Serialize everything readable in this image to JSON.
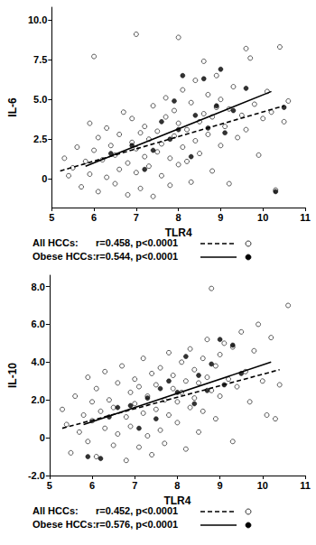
{
  "chart_data": [
    {
      "type": "scatter",
      "x_label": "TLR4",
      "y_label": "IL-6",
      "xlim": [
        5,
        11
      ],
      "xticks": [
        5,
        6,
        7,
        8,
        9,
        10,
        11
      ],
      "ylim": [
        -1.8,
        10.8
      ],
      "yticks": [
        0,
        {
          "value": 2.5,
          "label": "2.5"
        },
        {
          "value": 5,
          "label": "5.0"
        },
        {
          "value": 7.5,
          "label": "7.5"
        },
        {
          "value": 10,
          "label": "10.0"
        }
      ],
      "grid": false,
      "series": [
        {
          "name": "All HCCs:",
          "annotation": "r=0.458, p<0.0001",
          "marker": "open",
          "line_style": "dashed",
          "color": "#000000",
          "fit": [
            [
              5.2,
              0.5
            ],
            [
              10.5,
              4.6
            ]
          ],
          "values": [
            [
              5.3,
              1.3
            ],
            [
              5.4,
              0.2
            ],
            [
              5.5,
              0.7
            ],
            [
              5.6,
              2.0
            ],
            [
              5.7,
              -0.5
            ],
            [
              5.8,
              1.1
            ],
            [
              5.9,
              3.5
            ],
            [
              5.9,
              0.3
            ],
            [
              6.0,
              1.8
            ],
            [
              6.0,
              7.7
            ],
            [
              6.1,
              -0.8
            ],
            [
              6.1,
              2.6
            ],
            [
              6.2,
              1.2
            ],
            [
              6.3,
              0.1
            ],
            [
              6.3,
              3.2
            ],
            [
              6.4,
              2.1
            ],
            [
              6.5,
              -0.3
            ],
            [
              6.5,
              1.5
            ],
            [
              6.6,
              2.8
            ],
            [
              6.6,
              0.6
            ],
            [
              6.7,
              4.2
            ],
            [
              6.8,
              1.0
            ],
            [
              6.8,
              -1.0
            ],
            [
              6.9,
              2.3
            ],
            [
              6.9,
              3.8
            ],
            [
              7.0,
              0.4
            ],
            [
              7.0,
              1.9
            ],
            [
              7.0,
              9.1
            ],
            [
              7.1,
              2.9
            ],
            [
              7.1,
              -0.6
            ],
            [
              7.2,
              1.4
            ],
            [
              7.2,
              3.3
            ],
            [
              7.3,
              0.8
            ],
            [
              7.3,
              2.5
            ],
            [
              7.4,
              4.6
            ],
            [
              7.4,
              -1.1
            ],
            [
              7.5,
              1.7
            ],
            [
              7.5,
              3.0
            ],
            [
              7.6,
              0.2
            ],
            [
              7.6,
              2.2
            ],
            [
              7.7,
              3.9
            ],
            [
              7.7,
              5.1
            ],
            [
              7.8,
              1.3
            ],
            [
              7.8,
              -0.4
            ],
            [
              7.9,
              2.7
            ],
            [
              7.9,
              4.3
            ],
            [
              8.0,
              0.9
            ],
            [
              8.0,
              3.5
            ],
            [
              8.0,
              8.9
            ],
            [
              8.1,
              2.0
            ],
            [
              8.1,
              5.6
            ],
            [
              8.2,
              1.1
            ],
            [
              8.2,
              3.1
            ],
            [
              8.3,
              4.8
            ],
            [
              8.3,
              -0.2
            ],
            [
              8.4,
              2.4
            ],
            [
              8.4,
              6.2
            ],
            [
              8.5,
              3.6
            ],
            [
              8.5,
              1.6
            ],
            [
              8.6,
              4.1
            ],
            [
              8.6,
              7.4
            ],
            [
              8.7,
              2.8
            ],
            [
              8.7,
              5.3
            ],
            [
              8.8,
              0.5
            ],
            [
              8.8,
              3.9
            ],
            [
              8.9,
              4.5
            ],
            [
              8.9,
              6.5
            ],
            [
              9.0,
              2.1
            ],
            [
              9.0,
              5.0
            ],
            [
              9.1,
              3.3
            ],
            [
              9.2,
              4.4
            ],
            [
              9.2,
              -0.3
            ],
            [
              9.3,
              5.8
            ],
            [
              9.4,
              2.6
            ],
            [
              9.5,
              4.0
            ],
            [
              9.6,
              8.2
            ],
            [
              9.6,
              3.1
            ],
            [
              9.7,
              7.6
            ],
            [
              9.8,
              4.7
            ],
            [
              9.9,
              1.5
            ],
            [
              10.0,
              3.8
            ],
            [
              10.1,
              5.5
            ],
            [
              10.2,
              4.2
            ],
            [
              10.3,
              -0.7
            ],
            [
              10.4,
              8.3
            ],
            [
              10.5,
              3.6
            ],
            [
              10.6,
              4.9
            ]
          ]
        },
        {
          "name": "Obese HCCs:",
          "annotation": "r=0.544, p<0.0001",
          "marker": "filled",
          "line_style": "solid",
          "color": "#000000",
          "fit": [
            [
              5.8,
              0.8
            ],
            [
              10.2,
              5.5
            ]
          ],
          "values": [
            [
              6.4,
              1.6
            ],
            [
              6.9,
              2.1
            ],
            [
              7.2,
              0.6
            ],
            [
              7.4,
              1.8
            ],
            [
              7.6,
              3.6
            ],
            [
              7.8,
              2.5
            ],
            [
              7.9,
              4.9
            ],
            [
              8.0,
              3.1
            ],
            [
              8.1,
              6.5
            ],
            [
              8.3,
              1.4
            ],
            [
              8.4,
              4.0
            ],
            [
              8.6,
              6.3
            ],
            [
              8.7,
              3.2
            ],
            [
              8.9,
              4.6
            ],
            [
              9.0,
              6.9
            ],
            [
              9.1,
              2.9
            ],
            [
              9.3,
              4.3
            ],
            [
              9.6,
              5.7
            ],
            [
              10.3,
              -0.8
            ],
            [
              10.5,
              4.5
            ]
          ]
        }
      ]
    },
    {
      "type": "scatter",
      "x_label": "TLR4",
      "y_label": "IL-10",
      "xlim": [
        5,
        11
      ],
      "xticks": [
        5,
        6,
        7,
        8,
        9,
        10,
        11
      ],
      "ylim": [
        -2,
        8.6
      ],
      "yticks": [
        {
          "value": -2,
          "label": "-2.0"
        },
        0,
        {
          "value": 2,
          "label": "2.0"
        },
        {
          "value": 4,
          "label": "4.0"
        },
        {
          "value": 6,
          "label": "6.0"
        },
        {
          "value": 8,
          "label": "8.0"
        }
      ],
      "grid": false,
      "series": [
        {
          "name": "All HCCs:",
          "annotation": "r=0.452, p<0.0001",
          "marker": "open",
          "line_style": "dashed",
          "color": "#000000",
          "fit": [
            [
              5.3,
              0.5
            ],
            [
              10.4,
              3.6
            ]
          ],
          "values": [
            [
              5.3,
              1.5
            ],
            [
              5.4,
              0.7
            ],
            [
              5.5,
              -0.8
            ],
            [
              5.6,
              2.2
            ],
            [
              5.7,
              0.3
            ],
            [
              5.8,
              1.2
            ],
            [
              5.9,
              3.2
            ],
            [
              5.9,
              -0.2
            ],
            [
              6.0,
              1.9
            ],
            [
              6.0,
              0.9
            ],
            [
              6.1,
              2.6
            ],
            [
              6.1,
              -1.0
            ],
            [
              6.2,
              1.4
            ],
            [
              6.3,
              0.5
            ],
            [
              6.3,
              3.5
            ],
            [
              6.4,
              2.0
            ],
            [
              6.5,
              -0.4
            ],
            [
              6.5,
              1.6
            ],
            [
              6.6,
              2.9
            ],
            [
              6.6,
              0.2
            ],
            [
              6.7,
              3.8
            ],
            [
              6.8,
              1.1
            ],
            [
              6.8,
              -1.2
            ],
            [
              6.9,
              2.4
            ],
            [
              6.9,
              0.6
            ],
            [
              7.0,
              1.8
            ],
            [
              7.0,
              3.1
            ],
            [
              7.1,
              -0.5
            ],
            [
              7.1,
              2.7
            ],
            [
              7.2,
              1.3
            ],
            [
              7.2,
              4.2
            ],
            [
              7.3,
              0.1
            ],
            [
              7.3,
              2.2
            ],
            [
              7.4,
              3.4
            ],
            [
              7.4,
              -0.9
            ],
            [
              7.5,
              1.5
            ],
            [
              7.5,
              2.8
            ],
            [
              7.6,
              0.4
            ],
            [
              7.6,
              3.7
            ],
            [
              7.7,
              2.0
            ],
            [
              7.7,
              -0.3
            ],
            [
              7.8,
              4.5
            ],
            [
              7.8,
              1.2
            ],
            [
              7.9,
              2.6
            ],
            [
              7.9,
              3.3
            ],
            [
              8.0,
              0.8
            ],
            [
              8.0,
              1.9
            ],
            [
              8.1,
              4.0
            ],
            [
              8.1,
              2.4
            ],
            [
              8.2,
              -0.6
            ],
            [
              8.2,
              3.0
            ],
            [
              8.3,
              1.6
            ],
            [
              8.3,
              4.7
            ],
            [
              8.4,
              2.1
            ],
            [
              8.4,
              3.6
            ],
            [
              8.5,
              0.3
            ],
            [
              8.5,
              2.9
            ],
            [
              8.6,
              4.2
            ],
            [
              8.6,
              1.4
            ],
            [
              8.7,
              3.2
            ],
            [
              8.7,
              5.2
            ],
            [
              8.8,
              2.5
            ],
            [
              8.8,
              7.9
            ],
            [
              8.9,
              3.8
            ],
            [
              8.9,
              1.0
            ],
            [
              9.0,
              4.4
            ],
            [
              9.0,
              2.2
            ],
            [
              9.1,
              5.0
            ],
            [
              9.2,
              3.1
            ],
            [
              9.3,
              -0.2
            ],
            [
              9.3,
              4.8
            ],
            [
              9.4,
              2.7
            ],
            [
              9.5,
              5.6
            ],
            [
              9.6,
              3.5
            ],
            [
              9.7,
              1.9
            ],
            [
              9.8,
              4.6
            ],
            [
              9.9,
              6.0
            ],
            [
              10.0,
              3.0
            ],
            [
              10.1,
              1.2
            ],
            [
              10.2,
              5.3
            ],
            [
              10.3,
              1.0
            ],
            [
              10.4,
              2.8
            ],
            [
              10.6,
              7.0
            ]
          ]
        },
        {
          "name": "Obese HCCs:",
          "annotation": "r=0.576, p<0.0001",
          "marker": "filled",
          "line_style": "solid",
          "color": "#000000",
          "fit": [
            [
              5.8,
              0.7
            ],
            [
              10.2,
              4.0
            ]
          ],
          "values": [
            [
              5.9,
              -1.0
            ],
            [
              6.2,
              -1.1
            ],
            [
              6.4,
              1.1
            ],
            [
              6.6,
              1.6
            ],
            [
              6.9,
              1.7
            ],
            [
              7.1,
              0.5
            ],
            [
              7.3,
              2.1
            ],
            [
              7.5,
              1.0
            ],
            [
              7.6,
              2.6
            ],
            [
              7.8,
              3.0
            ],
            [
              8.0,
              2.4
            ],
            [
              8.2,
              4.3
            ],
            [
              8.4,
              1.8
            ],
            [
              8.5,
              3.3
            ],
            [
              8.7,
              2.5
            ],
            [
              8.8,
              3.9
            ],
            [
              9.0,
              5.2
            ],
            [
              9.1,
              2.8
            ],
            [
              9.3,
              4.9
            ],
            [
              9.5,
              3.4
            ]
          ]
        }
      ]
    }
  ]
}
